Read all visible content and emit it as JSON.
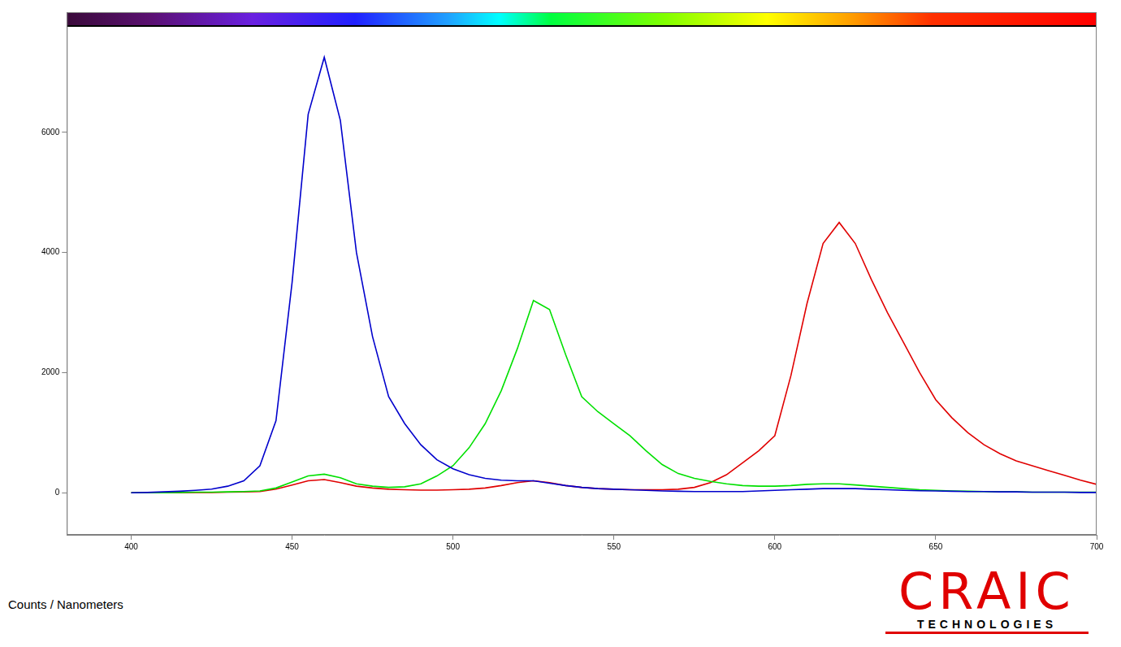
{
  "chart_data": {
    "type": "line",
    "x": [
      400,
      405,
      410,
      415,
      420,
      425,
      430,
      435,
      440,
      445,
      450,
      455,
      460,
      465,
      470,
      475,
      480,
      485,
      490,
      495,
      500,
      505,
      510,
      515,
      520,
      525,
      530,
      535,
      540,
      545,
      550,
      555,
      560,
      565,
      570,
      575,
      580,
      585,
      590,
      595,
      600,
      605,
      610,
      615,
      620,
      625,
      630,
      635,
      640,
      645,
      650,
      655,
      660,
      665,
      670,
      675,
      680,
      685,
      690,
      695,
      700
    ],
    "series": [
      {
        "color": "#0000cc",
        "values": [
          0,
          5,
          15,
          25,
          40,
          60,
          110,
          200,
          450,
          1200,
          3500,
          6300,
          7250,
          6200,
          4000,
          2600,
          1600,
          1150,
          800,
          550,
          400,
          300,
          240,
          210,
          200,
          200,
          160,
          120,
          90,
          70,
          60,
          50,
          40,
          30,
          25,
          20,
          20,
          20,
          20,
          30,
          40,
          50,
          60,
          70,
          70,
          70,
          60,
          50,
          40,
          35,
          30,
          25,
          20,
          20,
          15,
          15,
          10,
          10,
          10,
          5,
          5
        ]
      },
      {
        "color": "#00e000",
        "values": [
          0,
          0,
          0,
          5,
          10,
          10,
          15,
          20,
          30,
          80,
          180,
          280,
          310,
          250,
          150,
          110,
          90,
          100,
          150,
          280,
          450,
          750,
          1150,
          1700,
          2400,
          3200,
          3050,
          2300,
          1600,
          1350,
          1150,
          950,
          700,
          470,
          320,
          240,
          190,
          150,
          120,
          110,
          110,
          120,
          140,
          150,
          150,
          130,
          110,
          90,
          70,
          50,
          40,
          30,
          25,
          20,
          15,
          15,
          10,
          10,
          10,
          10,
          10
        ]
      },
      {
        "color": "#e00000",
        "values": [
          0,
          0,
          0,
          0,
          5,
          5,
          10,
          15,
          20,
          60,
          130,
          200,
          220,
          170,
          110,
          80,
          60,
          50,
          45,
          45,
          50,
          60,
          80,
          120,
          170,
          200,
          170,
          120,
          90,
          70,
          60,
          50,
          50,
          50,
          60,
          90,
          170,
          300,
          500,
          700,
          950,
          1950,
          3150,
          4150,
          4500,
          4150,
          3550,
          3000,
          2500,
          2000,
          1550,
          1250,
          1000,
          800,
          650,
          530,
          450,
          370,
          290,
          210,
          140
        ]
      }
    ],
    "xlim": [
      380,
      700
    ],
    "xticks": [
      400,
      450,
      500,
      550,
      600,
      650,
      700
    ],
    "ylim": [
      -700,
      8000
    ],
    "yticks": [
      0,
      2000,
      4000,
      6000
    ],
    "grid": false
  },
  "annotation": "Counts / Nanometers",
  "logo": {
    "text": "CRAIC",
    "subtext": "TECHNOLOGIES"
  }
}
